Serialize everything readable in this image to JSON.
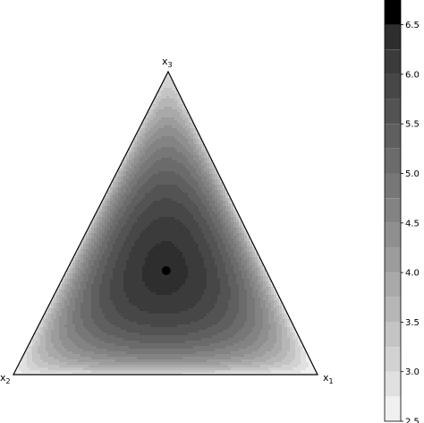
{
  "chart_data": {
    "type": "ternary-contour",
    "vertices": [
      {
        "name": "x",
        "sub": "1"
      },
      {
        "name": "x",
        "sub": "2"
      },
      {
        "name": "x",
        "sub": "3"
      }
    ],
    "center_point": {
      "x1": 0.333,
      "x2": 0.333,
      "x3": 0.333
    },
    "colorbar": {
      "min": 2.5,
      "max": 6.75,
      "step": 0.25,
      "ticks": [
        "2.5",
        "3.0",
        "3.5",
        "4.0",
        "4.5",
        "5.0",
        "5.5",
        "6.0",
        "6.5"
      ],
      "colors": [
        "#f0f0f0",
        "#e0e0e0",
        "#d2d2d2",
        "#c4c4c4",
        "#b6b6b6",
        "#a9a9a9",
        "#9c9c9c",
        "#8f8f8f",
        "#838383",
        "#777777",
        "#6b6b6b",
        "#5f5f5f",
        "#535353",
        "#474747",
        "#3b3b3b",
        "#2e2e2e",
        "#000000"
      ]
    },
    "grid": false,
    "legend": "right colorbar"
  }
}
